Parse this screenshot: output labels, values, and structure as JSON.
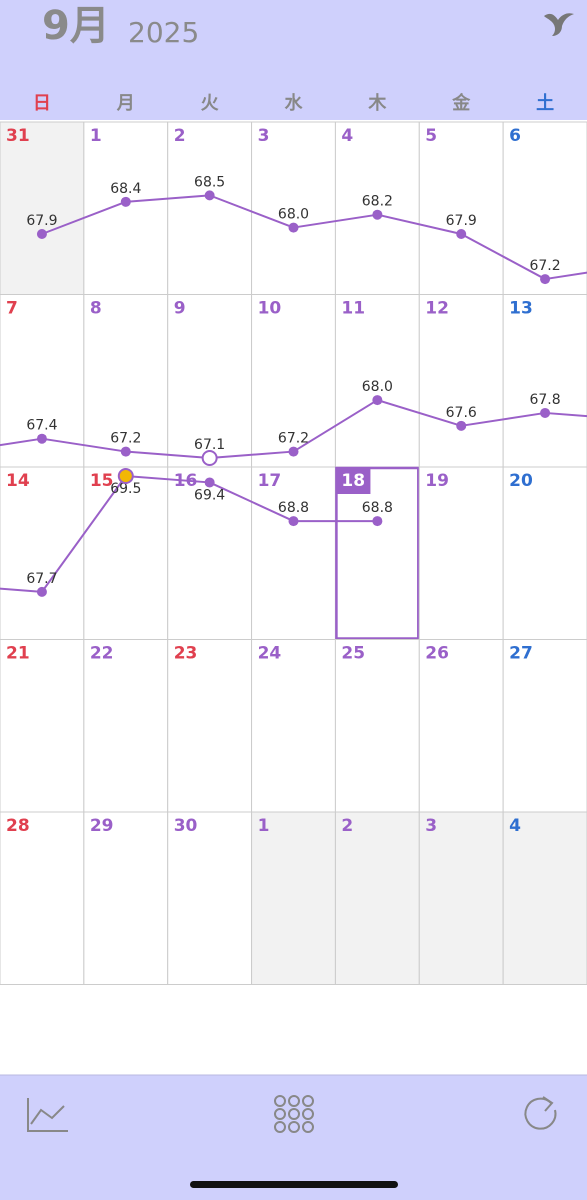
{
  "header": {
    "month": "9月",
    "year": "2025"
  },
  "weekdays": [
    "日",
    "月",
    "火",
    "水",
    "木",
    "金",
    "土"
  ],
  "weeks": [
    [
      {
        "label": "31",
        "other_month": true,
        "weight": 67.9
      },
      {
        "label": "1",
        "weight": 68.4
      },
      {
        "label": "2",
        "weight": 68.5
      },
      {
        "label": "3",
        "weight": 68,
        "weight_label": "68.0"
      },
      {
        "label": "4",
        "weight": 68.2
      },
      {
        "label": "5",
        "weight": 67.9
      },
      {
        "label": "6",
        "weight": 67.2
      }
    ],
    [
      {
        "label": "7",
        "weight": 67.4
      },
      {
        "label": "8",
        "weight": 67.2
      },
      {
        "label": "9",
        "weight": 67.1
      },
      {
        "label": "10",
        "weight": 67.2
      },
      {
        "label": "11",
        "weight": 68,
        "weight_label": "68.0"
      },
      {
        "label": "12",
        "weight": 67.6
      },
      {
        "label": "13",
        "weight": 67.8
      }
    ],
    [
      {
        "label": "14",
        "weight": 67.7
      },
      {
        "label": "15",
        "holiday": true,
        "weight": 69.5
      },
      {
        "label": "16",
        "weight": 69.4
      },
      {
        "label": "17",
        "weight": 68.8
      },
      {
        "label": "18",
        "today": true,
        "weight": 68.8
      },
      {
        "label": "19"
      },
      {
        "label": "20"
      }
    ],
    [
      {
        "label": "21"
      },
      {
        "label": "22"
      },
      {
        "label": "23",
        "holiday": true
      },
      {
        "label": "24"
      },
      {
        "label": "25"
      },
      {
        "label": "26"
      },
      {
        "label": "27"
      }
    ],
    [
      {
        "label": "28"
      },
      {
        "label": "29"
      },
      {
        "label": "30"
      },
      {
        "label": "1",
        "other_month": true
      },
      {
        "label": "2",
        "other_month": true
      },
      {
        "label": "3",
        "other_month": true
      },
      {
        "label": "4",
        "other_month": true
      }
    ]
  ]
}
